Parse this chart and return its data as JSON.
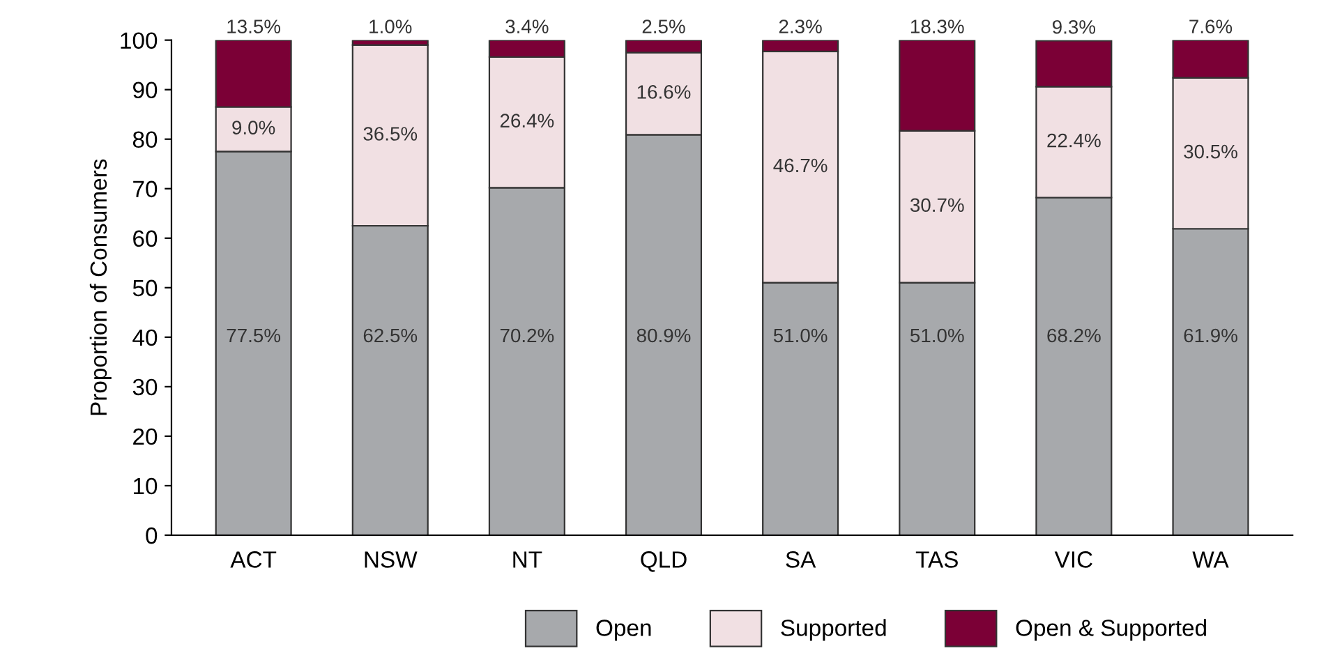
{
  "chart_data": {
    "type": "bar",
    "stacked": true,
    "ylabel": "Proportion of Consumers",
    "categories": [
      "ACT",
      "NSW",
      "NT",
      "QLD",
      "SA",
      "TAS",
      "VIC",
      "WA"
    ],
    "series": [
      {
        "name": "Open",
        "color": "#a7a9ac",
        "values": [
          77.5,
          62.5,
          70.2,
          80.9,
          51.0,
          51.0,
          68.2,
          61.9
        ],
        "value_labels": [
          "77.5%",
          "62.5%",
          "70.2%",
          "80.9%",
          "51.0%",
          "51.0%",
          "68.2%",
          "61.9%"
        ]
      },
      {
        "name": "Supported",
        "color": "#f1e0e3",
        "values": [
          9.0,
          36.5,
          26.4,
          16.6,
          46.7,
          30.7,
          22.4,
          30.5
        ],
        "value_labels": [
          "9.0%",
          "36.5%",
          "26.4%",
          "16.6%",
          "46.7%",
          "30.7%",
          "22.4%",
          "30.5%"
        ]
      },
      {
        "name": "Open & Supported",
        "color": "#7b0036",
        "values": [
          13.5,
          1.0,
          3.4,
          2.5,
          2.3,
          18.3,
          9.3,
          7.6
        ],
        "value_labels": [
          "13.5%",
          "1.0%",
          "3.4%",
          "2.5%",
          "2.3%",
          "18.3%",
          "9.3%",
          "7.6%"
        ]
      }
    ],
    "ylim": [
      0,
      100
    ],
    "yticks": [
      0,
      10,
      20,
      30,
      40,
      50,
      60,
      70,
      80,
      90,
      100
    ],
    "grid": false,
    "legend": "bottom"
  }
}
